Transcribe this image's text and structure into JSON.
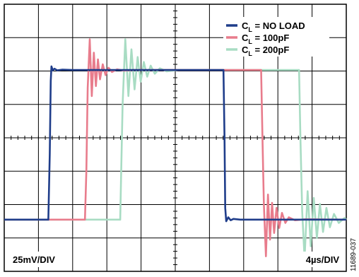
{
  "chart_data": {
    "type": "line",
    "title": "",
    "xlabel": "",
    "ylabel": "",
    "grid": true,
    "legend_placement": "top-right",
    "grid_divisions": {
      "x": 10,
      "y": 8
    },
    "x_scale_label": "4µs/DIV",
    "y_scale_label": "25mV/DIV",
    "x_unit": "div",
    "y_unit": "div",
    "xlim": [
      0,
      10
    ],
    "ylim": [
      -4,
      4
    ],
    "series": [
      {
        "name_main": "C",
        "name_sub": "L",
        "name_rest": " = NO LOAD",
        "color": "#1f3d8a",
        "points": [
          [
            0,
            -2.45
          ],
          [
            1.29,
            -2.45
          ],
          [
            1.33,
            -0.5
          ],
          [
            1.36,
            1.7
          ],
          [
            1.38,
            2.14
          ],
          [
            1.42,
            2.02
          ],
          [
            1.47,
            2.07
          ],
          [
            1.55,
            2.02
          ],
          [
            1.7,
            2.04
          ],
          [
            2,
            2.03
          ],
          [
            6.41,
            2.03
          ],
          [
            6.44,
            0
          ],
          [
            6.46,
            -2.1
          ],
          [
            6.49,
            -2.5
          ],
          [
            6.55,
            -2.38
          ],
          [
            6.62,
            -2.47
          ],
          [
            6.7,
            -2.43
          ],
          [
            6.9,
            -2.45
          ],
          [
            10,
            -2.45
          ]
        ]
      },
      {
        "name_main": "C",
        "name_sub": "L",
        "name_rest": " = 100pF",
        "color": "#e87c8c",
        "points": [
          [
            0,
            -2.45
          ],
          [
            2.36,
            -2.45
          ],
          [
            2.4,
            -1
          ],
          [
            2.44,
            1.5
          ],
          [
            2.5,
            2.95
          ],
          [
            2.56,
            1.25
          ],
          [
            2.62,
            2.55
          ],
          [
            2.68,
            1.55
          ],
          [
            2.74,
            2.35
          ],
          [
            2.8,
            1.75
          ],
          [
            2.88,
            2.2
          ],
          [
            2.96,
            1.88
          ],
          [
            3.05,
            2.1
          ],
          [
            3.15,
            1.97
          ],
          [
            3.3,
            2.05
          ],
          [
            3.5,
            2.01
          ],
          [
            3.8,
            2.03
          ],
          [
            7.51,
            2.03
          ],
          [
            7.55,
            0
          ],
          [
            7.59,
            -2
          ],
          [
            7.65,
            -3.55
          ],
          [
            7.71,
            -1.7
          ],
          [
            7.77,
            -3.05
          ],
          [
            7.83,
            -1.95
          ],
          [
            7.89,
            -2.85
          ],
          [
            7.96,
            -2.1
          ],
          [
            8.04,
            -2.7
          ],
          [
            8.12,
            -2.25
          ],
          [
            8.22,
            -2.55
          ],
          [
            8.32,
            -2.38
          ],
          [
            8.5,
            -2.47
          ],
          [
            8.8,
            -2.44
          ],
          [
            10,
            -2.45
          ]
        ]
      },
      {
        "name_main": "C",
        "name_sub": "L",
        "name_rest": " = 200pF",
        "color": "#a8dcc3",
        "points": [
          [
            0,
            -2.45
          ],
          [
            3.39,
            -2.45
          ],
          [
            3.42,
            -1
          ],
          [
            3.46,
            1
          ],
          [
            3.54,
            2.95
          ],
          [
            3.63,
            1.25
          ],
          [
            3.72,
            2.65
          ],
          [
            3.81,
            1.45
          ],
          [
            3.9,
            2.42
          ],
          [
            3.99,
            1.68
          ],
          [
            4.08,
            2.27
          ],
          [
            4.18,
            1.83
          ],
          [
            4.28,
            2.16
          ],
          [
            4.4,
            1.92
          ],
          [
            4.55,
            2.08
          ],
          [
            4.75,
            1.99
          ],
          [
            5.1,
            2.03
          ],
          [
            8.62,
            2.03
          ],
          [
            8.66,
            0
          ],
          [
            8.71,
            -2.2
          ],
          [
            8.78,
            -3.62
          ],
          [
            8.87,
            -1.6
          ],
          [
            8.96,
            -3.25
          ],
          [
            9.05,
            -1.8
          ],
          [
            9.14,
            -3
          ],
          [
            9.23,
            -1.98
          ],
          [
            9.32,
            -2.82
          ],
          [
            9.42,
            -2.1
          ],
          [
            9.52,
            -2.68
          ],
          [
            9.64,
            -2.28
          ],
          [
            9.78,
            -2.55
          ],
          [
            9.95,
            -2.4
          ],
          [
            10,
            -2.45
          ]
        ]
      }
    ]
  },
  "figure_id": "11689-037"
}
